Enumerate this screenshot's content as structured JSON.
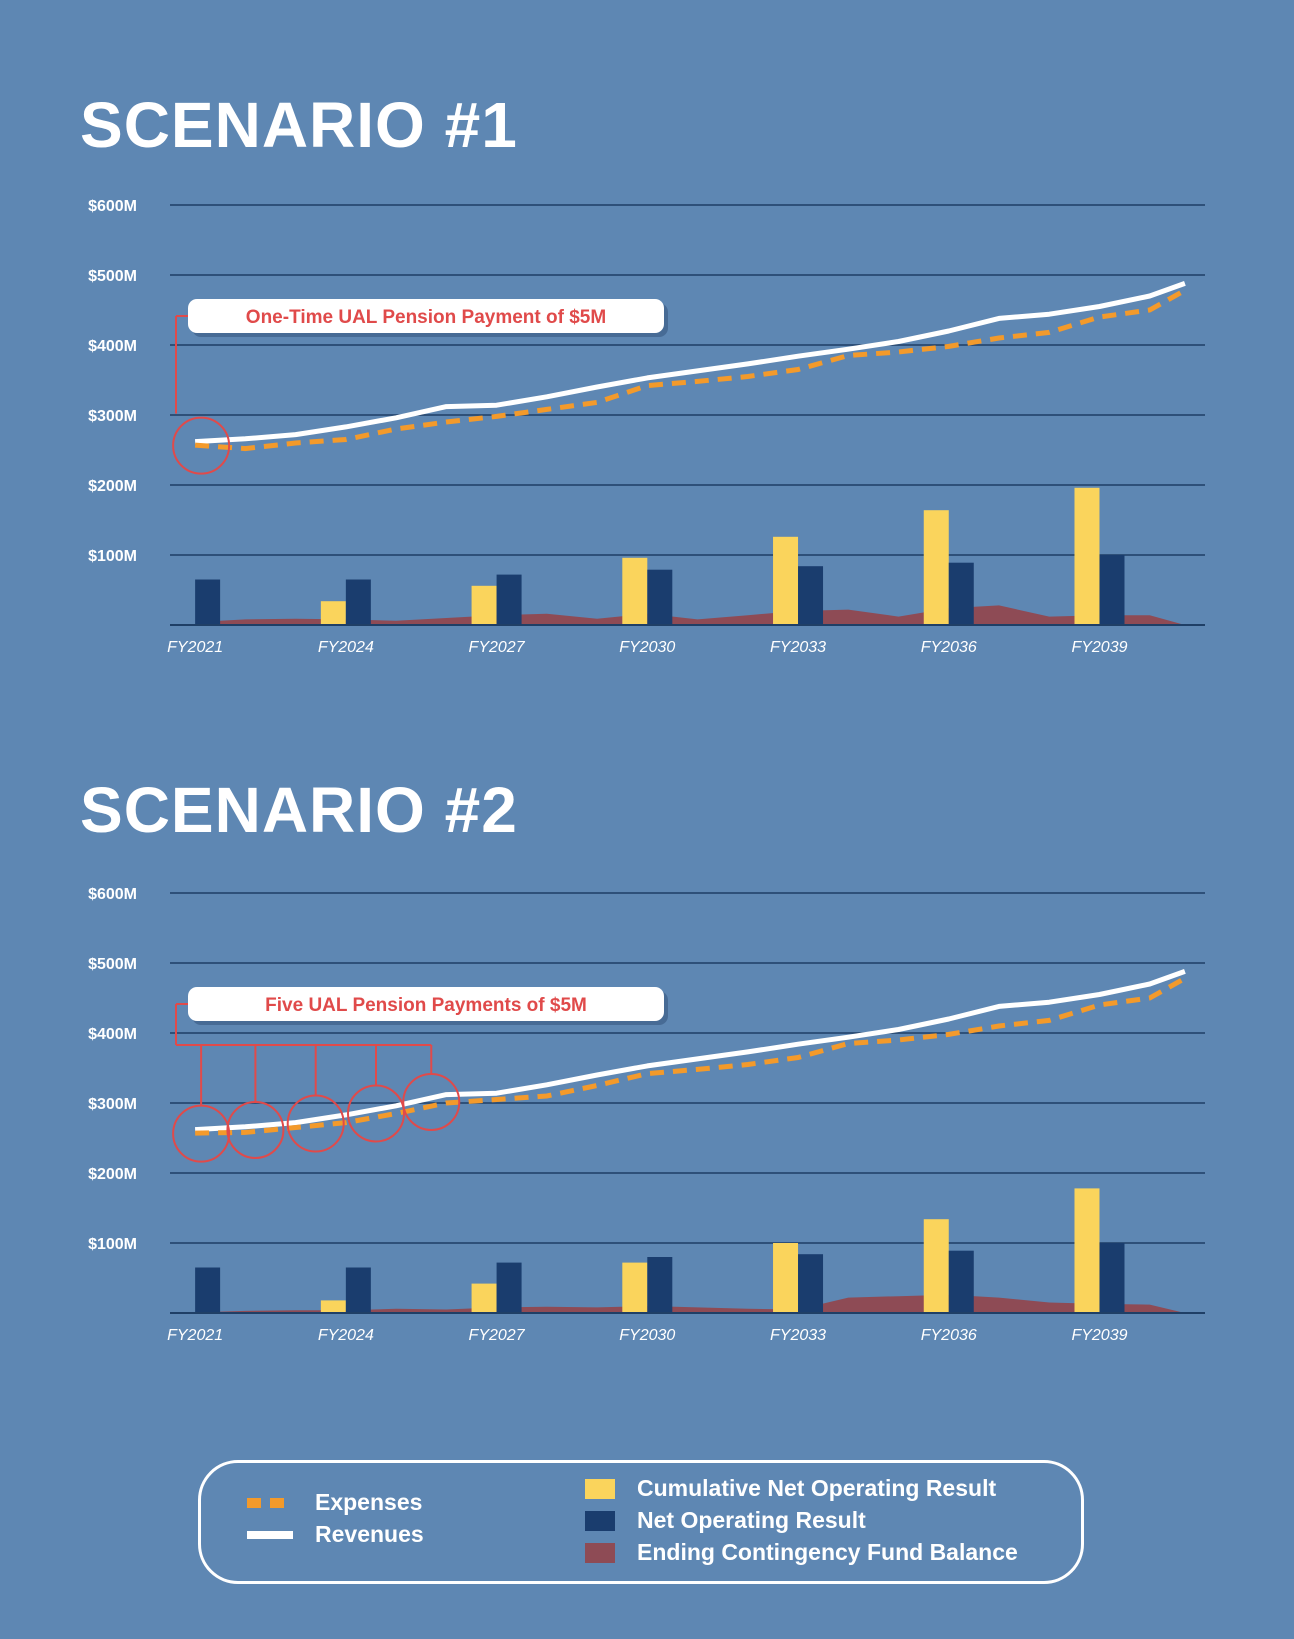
{
  "colors": {
    "background": "#5e87b3",
    "expenses": "#f39a2b",
    "revenues": "#ffffff",
    "cumulative": "#fad45c",
    "net": "#1a3d6e",
    "contingency": "#8e4b55",
    "grid": "#1f3f66",
    "annotation": "#e04a4a"
  },
  "chart_data": [
    {
      "type": "bar",
      "title": "SCENARIO #1",
      "annotation": "One-Time UAL Pension Payment of $5M",
      "y_tick_labels": [
        "$100M",
        "$200M",
        "$300M",
        "$400M",
        "$500M",
        "$600M"
      ],
      "ylim": [
        0,
        600
      ],
      "x_tick_labels": [
        "FY2021",
        "FY2024",
        "FY2027",
        "FY2030",
        "FY2033",
        "FY2036",
        "FY2039"
      ],
      "highlighted_years": [
        2021
      ],
      "series": [
        {
          "name": "Cumulative Net Operating Result",
          "x": [
            2021,
            2024,
            2027,
            2030,
            2033,
            2036,
            2039
          ],
          "values": [
            0,
            34,
            56,
            96,
            126,
            164,
            196
          ]
        },
        {
          "name": "Net Operating Result",
          "x": [
            2021,
            2024,
            2027,
            2030,
            2033,
            2036,
            2039
          ],
          "values": [
            65,
            65,
            72,
            79,
            84,
            89,
            100
          ]
        },
        {
          "name": "Ending Contingency Fund Balance",
          "x": [
            2021,
            2021.5,
            2022,
            2023,
            2024,
            2025,
            2026,
            2027,
            2028,
            2029,
            2030,
            2031,
            2032,
            2033,
            2034,
            2035,
            2036,
            2037,
            2038,
            2039,
            2040,
            2040.7
          ],
          "values": [
            0,
            6,
            8,
            9,
            8,
            6,
            10,
            14,
            16,
            9,
            16,
            8,
            14,
            20,
            22,
            12,
            24,
            28,
            12,
            14,
            14,
            0
          ]
        },
        {
          "name": "Revenues",
          "x": [
            2021,
            2022,
            2023,
            2024,
            2025,
            2026,
            2027,
            2028,
            2029,
            2030,
            2031,
            2032,
            2033,
            2034,
            2035,
            2036,
            2037,
            2038,
            2039,
            2040,
            2040.7
          ],
          "values": [
            262,
            266,
            272,
            283,
            296,
            312,
            314,
            326,
            340,
            353,
            363,
            373,
            384,
            394,
            405,
            420,
            438,
            444,
            455,
            470,
            488
          ]
        },
        {
          "name": "Expenses",
          "x": [
            2021,
            2022,
            2023,
            2024,
            2025,
            2026,
            2027,
            2028,
            2029,
            2030,
            2031,
            2032,
            2033,
            2034,
            2035,
            2036,
            2037,
            2038,
            2039,
            2040,
            2040.7
          ],
          "values": [
            257,
            252,
            260,
            265,
            280,
            290,
            298,
            308,
            318,
            342,
            348,
            355,
            365,
            385,
            390,
            398,
            410,
            418,
            440,
            450,
            478
          ]
        }
      ]
    },
    {
      "type": "bar",
      "title": "SCENARIO #2",
      "annotation": "Five UAL Pension Payments of $5M",
      "y_tick_labels": [
        "$100M",
        "$200M",
        "$300M",
        "$400M",
        "$500M",
        "$600M"
      ],
      "ylim": [
        0,
        600
      ],
      "x_tick_labels": [
        "FY2021",
        "FY2024",
        "FY2027",
        "FY2030",
        "FY2033",
        "FY2036",
        "FY2039"
      ],
      "highlighted_years": [
        2021,
        2022.2,
        2023.4,
        2024.6,
        2025.7
      ],
      "series": [
        {
          "name": "Cumulative Net Operating Result",
          "x": [
            2021,
            2024,
            2027,
            2030,
            2033,
            2036,
            2039
          ],
          "values": [
            0,
            18,
            42,
            72,
            100,
            134,
            178
          ]
        },
        {
          "name": "Net Operating Result",
          "x": [
            2021,
            2024,
            2027,
            2030,
            2033,
            2036,
            2039
          ],
          "values": [
            65,
            65,
            72,
            80,
            84,
            89,
            100
          ]
        },
        {
          "name": "Ending Contingency Fund Balance",
          "x": [
            2021,
            2021.5,
            2022,
            2023,
            2024,
            2025,
            2026,
            2027,
            2028,
            2029,
            2030,
            2031,
            2032,
            2033,
            2034,
            2035,
            2036,
            2037,
            2038,
            2039,
            2040,
            2040.7
          ],
          "values": [
            0,
            2,
            3,
            4,
            4,
            6,
            5,
            8,
            9,
            8,
            10,
            8,
            6,
            5,
            22,
            24,
            26,
            22,
            15,
            13,
            12,
            0
          ]
        },
        {
          "name": "Revenues",
          "x": [
            2021,
            2022,
            2023,
            2024,
            2025,
            2026,
            2027,
            2028,
            2029,
            2030,
            2031,
            2032,
            2033,
            2034,
            2035,
            2036,
            2037,
            2038,
            2039,
            2040,
            2040.7
          ],
          "values": [
            262,
            266,
            272,
            283,
            296,
            312,
            314,
            326,
            340,
            353,
            363,
            373,
            384,
            394,
            405,
            420,
            438,
            444,
            455,
            470,
            488
          ]
        },
        {
          "name": "Expenses",
          "x": [
            2021,
            2022,
            2023,
            2024,
            2025,
            2026,
            2027,
            2028,
            2029,
            2030,
            2031,
            2032,
            2033,
            2034,
            2035,
            2036,
            2037,
            2038,
            2039,
            2040,
            2040.7
          ],
          "values": [
            257,
            258,
            265,
            272,
            285,
            300,
            305,
            310,
            325,
            342,
            348,
            355,
            365,
            385,
            390,
            398,
            410,
            418,
            440,
            450,
            478
          ]
        }
      ]
    }
  ],
  "legend": {
    "expenses": "Expenses",
    "revenues": "Revenues",
    "cumulative": "Cumulative Net Operating Result",
    "net": "Net Operating Result",
    "contingency": "Ending Contingency Fund Balance"
  }
}
